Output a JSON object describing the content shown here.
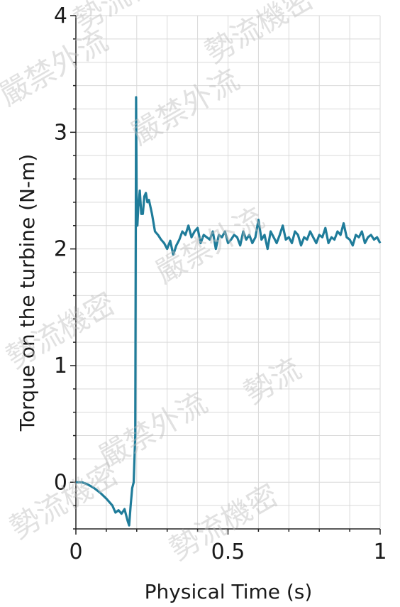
{
  "chart_data": {
    "type": "line",
    "title": "",
    "xlabel": "Physical Time (s)",
    "ylabel": "Torque on the turbine (N-m)",
    "xlim": [
      0,
      1
    ],
    "ylim": [
      -0.4,
      4
    ],
    "x_ticks": [
      0,
      0.5,
      1
    ],
    "x_tick_labels": [
      "0",
      "0.5",
      "1"
    ],
    "y_ticks": [
      0,
      1,
      2,
      3,
      4
    ],
    "y_tick_labels": [
      "0",
      "1",
      "2",
      "3",
      "4"
    ],
    "grid": true,
    "series": [
      {
        "color": "#1f7c9a",
        "x": [
          0.0,
          0.02,
          0.04,
          0.06,
          0.08,
          0.1,
          0.12,
          0.13,
          0.14,
          0.15,
          0.16,
          0.17,
          0.175,
          0.18,
          0.185,
          0.19,
          0.195,
          0.198,
          0.2,
          0.202,
          0.205,
          0.21,
          0.215,
          0.22,
          0.225,
          0.23,
          0.235,
          0.24,
          0.25,
          0.26,
          0.27,
          0.28,
          0.29,
          0.3,
          0.31,
          0.32,
          0.33,
          0.34,
          0.35,
          0.36,
          0.37,
          0.38,
          0.39,
          0.4,
          0.41,
          0.42,
          0.43,
          0.44,
          0.45,
          0.46,
          0.47,
          0.48,
          0.49,
          0.5,
          0.51,
          0.52,
          0.53,
          0.54,
          0.55,
          0.56,
          0.57,
          0.58,
          0.59,
          0.6,
          0.61,
          0.62,
          0.63,
          0.64,
          0.65,
          0.66,
          0.67,
          0.68,
          0.69,
          0.7,
          0.71,
          0.72,
          0.73,
          0.74,
          0.75,
          0.76,
          0.77,
          0.78,
          0.79,
          0.8,
          0.81,
          0.82,
          0.83,
          0.84,
          0.85,
          0.86,
          0.87,
          0.88,
          0.89,
          0.9,
          0.91,
          0.92,
          0.93,
          0.94,
          0.95,
          0.96,
          0.97,
          0.98,
          0.99,
          1.0
        ],
        "y": [
          0.0,
          0.0,
          -0.02,
          -0.05,
          -0.09,
          -0.14,
          -0.2,
          -0.26,
          -0.24,
          -0.27,
          -0.23,
          -0.33,
          -0.37,
          -0.2,
          -0.05,
          0.0,
          0.4,
          3.3,
          2.3,
          2.2,
          2.35,
          2.5,
          2.3,
          2.3,
          2.45,
          2.48,
          2.4,
          2.42,
          2.3,
          2.15,
          2.12,
          2.08,
          2.05,
          2.0,
          2.07,
          1.95,
          2.03,
          2.08,
          2.15,
          2.12,
          2.2,
          2.1,
          2.15,
          2.18,
          2.05,
          2.12,
          2.1,
          2.08,
          2.15,
          2.0,
          2.12,
          2.1,
          2.15,
          2.05,
          2.08,
          2.12,
          2.1,
          2.03,
          2.15,
          2.08,
          2.12,
          2.05,
          2.1,
          2.25,
          2.08,
          2.12,
          2.0,
          2.15,
          2.1,
          2.05,
          2.12,
          2.2,
          2.08,
          2.1,
          2.05,
          2.15,
          2.12,
          2.03,
          2.1,
          2.08,
          2.15,
          2.1,
          2.05,
          2.12,
          2.1,
          2.18,
          2.05,
          2.1,
          2.08,
          2.15,
          2.12,
          2.22,
          2.1,
          2.08,
          2.03,
          2.12,
          2.1,
          2.15,
          2.05,
          2.1,
          2.12,
          2.08,
          2.1,
          2.05
        ]
      }
    ]
  },
  "watermark_text": [
    "勢流機密",
    "嚴禁外流",
    "勢流機密",
    "嚴禁外流",
    "嚴禁外流",
    "勢流機密",
    "勢流",
    "嚴禁外流",
    "勢流機密",
    "勢流機密"
  ]
}
